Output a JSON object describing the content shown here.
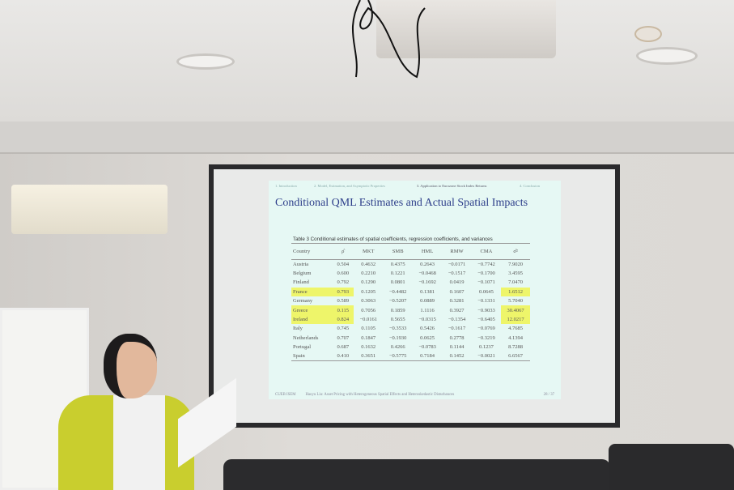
{
  "slide": {
    "nav": [
      "1. Introduction",
      "2. Model, Estimation, and Asymptotic Properties",
      "3. Application to Eurozone Stock Index Returns",
      "4. Conclusion"
    ],
    "title": "Conditional QML Estimates and Actual Spatial Impacts",
    "caption": "Table 3 Conditional estimates of spatial coefficients, regression coefficients, and variances",
    "headers": [
      "Country",
      "ρ̂",
      "MKT",
      "SMB",
      "HML",
      "RMW",
      "CMA",
      "σ̂²"
    ],
    "rows": [
      [
        "Austria",
        "0.504",
        "0.4632",
        "0.4375",
        "0.2643",
        "−0.0171",
        "−0.7742",
        "7.9020"
      ],
      [
        "Belgium",
        "0.600",
        "0.2210",
        "0.1221",
        "−0.0468",
        "−0.1517",
        "−0.1700",
        "3.4595"
      ],
      [
        "Finland",
        "0.792",
        "0.1290",
        "0.0801",
        "−0.1692",
        "0.0419",
        "−0.1071",
        "7.0470"
      ],
      [
        "France",
        "0.793",
        "0.1205",
        "−0.4482",
        "0.1381",
        "0.1607",
        "0.0645",
        "1.6512"
      ],
      [
        "Germany",
        "0.589",
        "0.3063",
        "−0.5207",
        "0.0889",
        "0.3281",
        "−0.1331",
        "5.7040"
      ],
      [
        "Greece",
        "0.115",
        "0.7056",
        "0.1859",
        "1.1116",
        "0.3927",
        "−0.9033",
        "30.4067"
      ],
      [
        "Ireland",
        "0.824",
        "−0.0161",
        "0.5655",
        "−0.0315",
        "−0.1354",
        "−0.6405",
        "12.0217"
      ],
      [
        "Italy",
        "0.745",
        "0.1105",
        "−0.3533",
        "0.5426",
        "−0.1617",
        "−0.0769",
        "4.7685"
      ],
      [
        "Netherlands",
        "0.707",
        "0.1847",
        "−0.1930",
        "0.0625",
        "0.2778",
        "−0.3219",
        "4.1394"
      ],
      [
        "Portugal",
        "0.687",
        "0.1632",
        "0.4266",
        "−0.0783",
        "0.1144",
        "0.1237",
        "8.7288"
      ],
      [
        "Spain",
        "0.410",
        "0.3651",
        "−0.5775",
        "0.7184",
        "0.1452",
        "−0.0021",
        "6.6567"
      ]
    ],
    "highlight_color": "#eef56a",
    "footer": {
      "institution": "CUEB ISEM",
      "talk": "Haoyu Liu: Asset Pricing with Heterogeneous Spatial Effects and Heteroskedastic Disturbances",
      "page": "28 / 37"
    }
  }
}
